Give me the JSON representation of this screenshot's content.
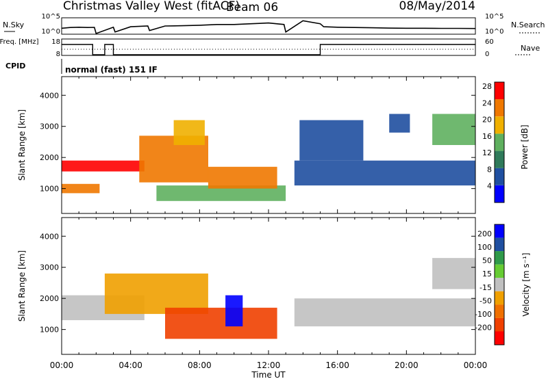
{
  "header": {
    "station": "Christmas Valley West (fitACF)",
    "beam": "Beam 06",
    "date": "08/May/2014"
  },
  "colors": {
    "power": [
      "#0000ff",
      "#1f4fa0",
      "#2f7a5a",
      "#5fb05f",
      "#f0b000",
      "#f07800",
      "#ff0000"
    ],
    "velocity": [
      "#0000ff",
      "#1f4fa0",
      "#2f9a4a",
      "#66cc33",
      "#c0c0c0",
      "#f0a000",
      "#f07000",
      "#f04000",
      "#ff0000"
    ]
  },
  "chart_data": [
    {
      "type": "line",
      "panel": "noise",
      "ylabel": "N.Sky",
      "ylabel_right": "N.Search",
      "yticks_left": [
        "10^5",
        "10^0"
      ],
      "yticks_right": [
        "10^5",
        "10^0"
      ],
      "x_hours": [
        0,
        0.5,
        1,
        1.5,
        1.9,
        2.0,
        3.0,
        3.1,
        4.0,
        5.0,
        5.1,
        6,
        7,
        8,
        9,
        10,
        11,
        12,
        12.9,
        13.0,
        14,
        15,
        15.2,
        16,
        17,
        18,
        19,
        20,
        21,
        22,
        23,
        24
      ],
      "series": [
        {
          "values": [
            0.35,
            0.4,
            0.42,
            0.4,
            0.41,
            0.0,
            0.42,
            0.1,
            0.45,
            0.5,
            0.2,
            0.5,
            0.52,
            0.55,
            0.6,
            0.6,
            0.65,
            0.7,
            0.6,
            0.1,
            0.85,
            0.65,
            0.45,
            0.42,
            0.4,
            0.38,
            0.36,
            0.35,
            0.35,
            0.34,
            0.34,
            0.33
          ]
        }
      ]
    },
    {
      "type": "line",
      "panel": "frequency",
      "ylabel": "Freq. [MHz]",
      "ylabel_right": "Nave",
      "yticks_left": [
        "18",
        "8"
      ],
      "yticks_right": [
        "60",
        "0"
      ],
      "x_hours": [
        0,
        1.8,
        1.8,
        2.5,
        2.5,
        3.0,
        3.0,
        15.0,
        15.0,
        24
      ],
      "series": [
        {
          "values": [
            0.75,
            0.75,
            0.0,
            0.0,
            0.75,
            0.75,
            0.0,
            0.0,
            0.75,
            0.75
          ]
        }
      ]
    },
    {
      "type": "heatmap",
      "panel": "power",
      "ylabel": "Slant Range [km]",
      "yticks": [
        "1000",
        "2000",
        "3000",
        "4000"
      ],
      "ylim": [
        200,
        4600
      ],
      "colorbar_label": "Power [dB]",
      "colorbar_ticks": [
        "4",
        "8",
        "12",
        "16",
        "20",
        "24",
        "28"
      ],
      "regions": [
        {
          "t": [
            0.0,
            4.8
          ],
          "r": [
            1550,
            1900
          ],
          "level": 0.95
        },
        {
          "t": [
            0.0,
            2.2
          ],
          "r": [
            850,
            1150
          ],
          "level": 0.85
        },
        {
          "t": [
            4.5,
            8.5
          ],
          "r": [
            1200,
            2700
          ],
          "level": 0.85
        },
        {
          "t": [
            6.5,
            8.3
          ],
          "r": [
            2400,
            3200
          ],
          "level": 0.7
        },
        {
          "t": [
            5.5,
            13.0
          ],
          "r": [
            600,
            1100
          ],
          "level": 0.55
        },
        {
          "t": [
            8.5,
            12.5
          ],
          "r": [
            1000,
            1700
          ],
          "level": 0.8
        },
        {
          "t": [
            13.5,
            24.0
          ],
          "r": [
            1100,
            1900
          ],
          "level": 0.15
        },
        {
          "t": [
            13.8,
            17.5
          ],
          "r": [
            1900,
            3200
          ],
          "level": 0.1
        },
        {
          "t": [
            19.0,
            20.2
          ],
          "r": [
            2800,
            3400
          ],
          "level": 0.15
        },
        {
          "t": [
            21.5,
            24.0
          ],
          "r": [
            2400,
            3400
          ],
          "level": 0.45
        }
      ]
    },
    {
      "type": "heatmap",
      "panel": "velocity",
      "ylabel": "Slant Range [km]",
      "yticks": [
        "1000",
        "2000",
        "3000",
        "4000"
      ],
      "ylim": [
        200,
        4600
      ],
      "colorbar_label": "Velocity [m s⁻¹]",
      "colorbar_ticks": [
        "200",
        "100",
        "50",
        "15",
        "-15",
        "-50",
        "-100",
        "-200"
      ],
      "xlabel": "Time UT",
      "xticks": [
        "00:00",
        "04:00",
        "08:00",
        "12:00",
        "16:00",
        "20:00",
        "00:00"
      ],
      "x_tick_hours": [
        0,
        4,
        8,
        12,
        16,
        20,
        24
      ],
      "regions": [
        {
          "t": [
            0.0,
            4.8
          ],
          "r": [
            1300,
            2100
          ],
          "level": 0.45
        },
        {
          "t": [
            2.5,
            8.5
          ],
          "r": [
            1500,
            2800
          ],
          "level": 0.6
        },
        {
          "t": [
            6.0,
            12.5
          ],
          "r": [
            700,
            1700
          ],
          "level": 0.9
        },
        {
          "t": [
            9.5,
            10.5
          ],
          "r": [
            1100,
            2100
          ],
          "level": 0.02
        },
        {
          "t": [
            13.5,
            24.0
          ],
          "r": [
            1100,
            2000
          ],
          "level": 0.45
        },
        {
          "t": [
            21.5,
            24.0
          ],
          "r": [
            2300,
            3300
          ],
          "level": 0.45
        }
      ]
    }
  ],
  "cpid": {
    "label": "CPID",
    "mode": "normal (fast) 151 IF"
  }
}
